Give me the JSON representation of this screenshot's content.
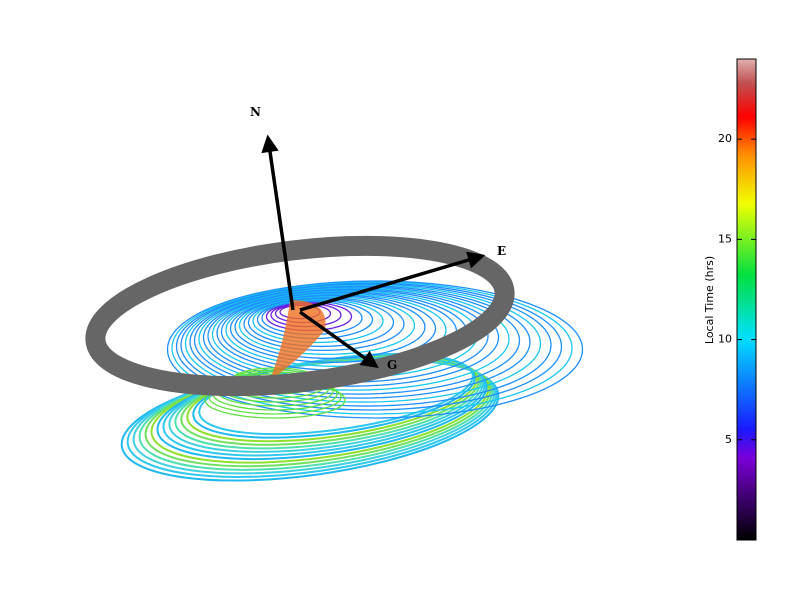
{
  "chart_data": {
    "type": "colorbar-3d",
    "annotations": [
      "N",
      "E",
      "G"
    ],
    "colorbar": {
      "label": "Local Time (hrs)",
      "lim": [
        0,
        24
      ],
      "ticks": [
        5,
        10,
        15,
        20
      ]
    }
  }
}
